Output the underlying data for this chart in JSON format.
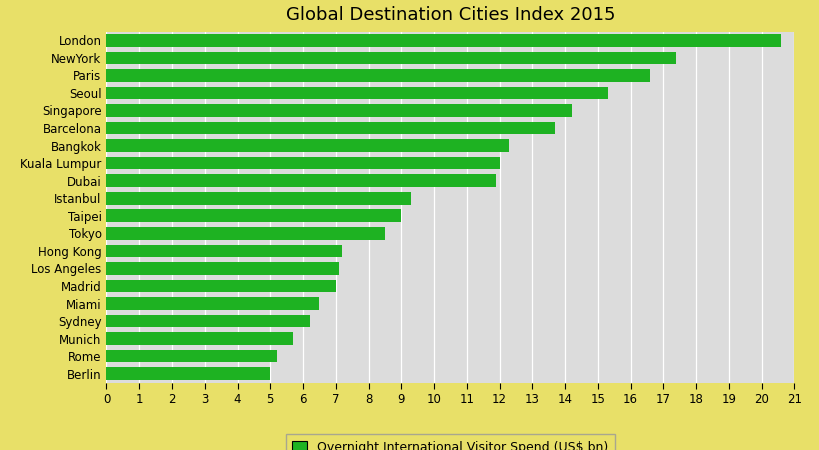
{
  "title": "Global Destination Cities Index 2015",
  "cities": [
    "Berlin",
    "Rome",
    "Munich",
    "Sydney",
    "Miami",
    "Madrid",
    "Los Angeles",
    "Hong Kong",
    "Tokyo",
    "Taipei",
    "Istanbul",
    "Dubai",
    "Kuala Lumpur",
    "Bangkok",
    "Barcelona",
    "Singapore",
    "Seoul",
    "Paris",
    "NewYork",
    "London"
  ],
  "values": [
    5.0,
    5.2,
    5.7,
    6.2,
    6.5,
    7.0,
    7.1,
    7.2,
    8.5,
    9.0,
    9.3,
    11.9,
    12.0,
    12.3,
    13.7,
    14.2,
    15.3,
    16.6,
    17.4,
    20.6
  ],
  "bar_color": "#1EB222",
  "background_outer": "#E8E068",
  "background_plot": "#DCDCDC",
  "legend_label": "Overnight International Visitor Spend (US$ bn)",
  "xlim": [
    0,
    21
  ],
  "xticks": [
    0,
    1,
    2,
    3,
    4,
    5,
    6,
    7,
    8,
    9,
    10,
    11,
    12,
    13,
    14,
    15,
    16,
    17,
    18,
    19,
    20,
    21
  ],
  "title_fontsize": 13,
  "tick_fontsize": 8.5,
  "label_fontsize": 9,
  "bar_height": 0.72
}
